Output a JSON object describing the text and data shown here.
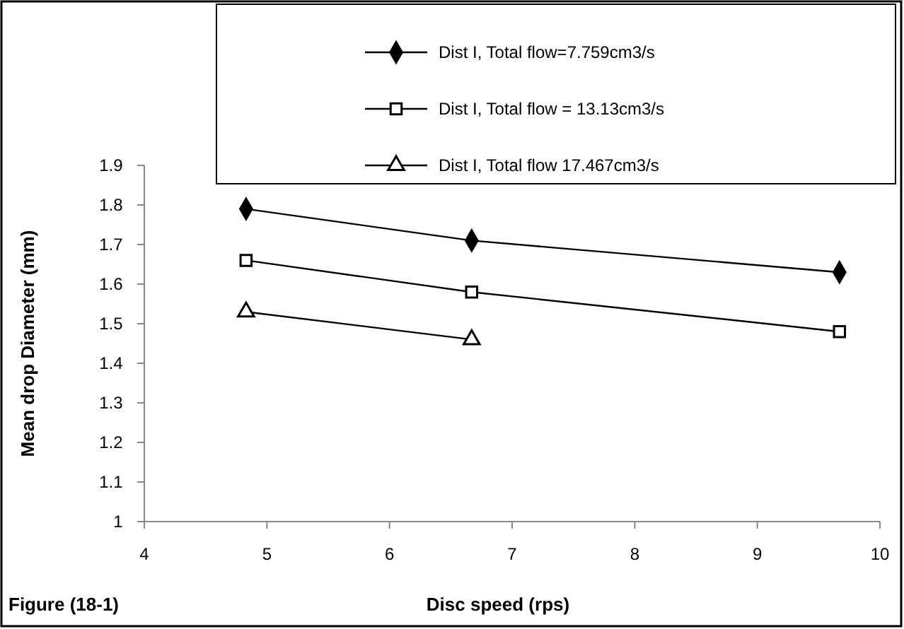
{
  "chart_data": {
    "type": "line",
    "xlabel": "Disc speed (rps)",
    "ylabel": "Mean drop Diameter (mm)",
    "annotations": [
      "Figure (18-1)"
    ],
    "x": [
      4.83,
      6.67,
      9.67
    ],
    "series": [
      {
        "name": "Dist I, Total flow=7.759cm3/s",
        "color": "#000000",
        "marker": "diamond",
        "values": [
          1.79,
          1.71,
          1.63
        ]
      },
      {
        "name": "Dist I, Total flow = 13.13cm3/s",
        "color": "#000000",
        "marker": "square",
        "values": [
          1.66,
          1.58,
          1.48
        ]
      },
      {
        "name": "Dist I, Total flow 17.467cm3/s",
        "color": "#000000",
        "marker": "triangle",
        "x": [
          4.83,
          6.67
        ],
        "values": [
          1.53,
          1.46
        ]
      }
    ],
    "xlim": [
      4,
      10
    ],
    "xticks": [
      4,
      5,
      6,
      7,
      8,
      9,
      10
    ],
    "ylim": [
      1,
      1.9
    ],
    "yticks": [
      1,
      1.1,
      1.2,
      1.3,
      1.4,
      1.5,
      1.6,
      1.7,
      1.8,
      1.9
    ],
    "grid": false,
    "legend": "top",
    "line_style": "solid"
  }
}
